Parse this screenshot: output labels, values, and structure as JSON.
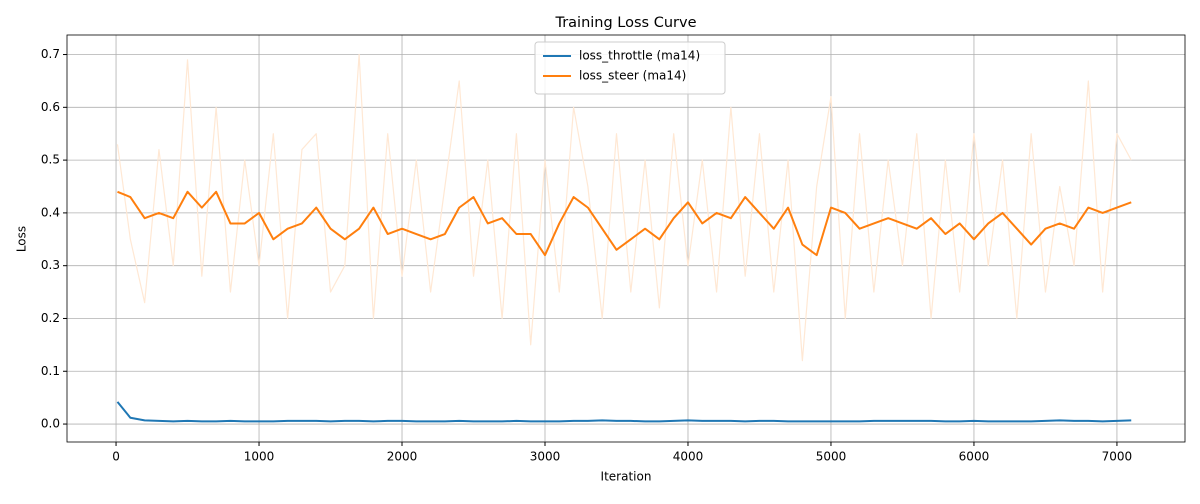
{
  "chart_data": {
    "type": "line",
    "title": "Training Loss Curve",
    "x_label": "Iteration",
    "y_label": "Loss",
    "x": [
      10,
      100,
      200,
      300,
      400,
      500,
      600,
      700,
      800,
      900,
      1000,
      1100,
      1200,
      1300,
      1400,
      1500,
      1600,
      1700,
      1800,
      1900,
      2000,
      2100,
      2200,
      2300,
      2400,
      2500,
      2600,
      2700,
      2800,
      2900,
      3000,
      3100,
      3200,
      3300,
      3400,
      3500,
      3600,
      3700,
      3800,
      3900,
      4000,
      4100,
      4200,
      4300,
      4400,
      4500,
      4600,
      4700,
      4800,
      4900,
      5000,
      5100,
      5200,
      5300,
      5400,
      5500,
      5600,
      5700,
      5800,
      5900,
      6000,
      6100,
      6200,
      6300,
      6400,
      6500,
      6600,
      6700,
      6800,
      6900,
      7000,
      7100
    ],
    "series": [
      {
        "color": "#ffe8d4",
        "values": [
          0.53,
          0.35,
          0.23,
          0.52,
          0.3,
          0.69,
          0.28,
          0.6,
          0.25,
          0.5,
          0.3,
          0.55,
          0.2,
          0.52,
          0.55,
          0.25,
          0.3,
          0.7,
          0.2,
          0.55,
          0.28,
          0.5,
          0.25,
          0.45,
          0.65,
          0.28,
          0.5,
          0.2,
          0.55,
          0.15,
          0.5,
          0.25,
          0.6,
          0.45,
          0.2,
          0.55,
          0.25,
          0.5,
          0.22,
          0.55,
          0.3,
          0.5,
          0.25,
          0.6,
          0.28,
          0.55,
          0.25,
          0.5,
          0.12,
          0.45,
          0.62,
          0.2,
          0.55,
          0.25,
          0.5,
          0.3,
          0.55,
          0.2,
          0.5,
          0.25,
          0.55,
          0.3,
          0.5,
          0.2,
          0.55,
          0.25,
          0.45,
          0.3,
          0.65,
          0.25,
          0.55,
          0.5
        ]
      },
      {
        "name": "loss_throttle (ma14)",
        "color": "#1f77b4",
        "values": [
          0.042,
          0.012,
          0.007,
          0.006,
          0.005,
          0.006,
          0.005,
          0.005,
          0.006,
          0.005,
          0.005,
          0.005,
          0.006,
          0.006,
          0.006,
          0.005,
          0.006,
          0.006,
          0.005,
          0.006,
          0.006,
          0.005,
          0.005,
          0.005,
          0.006,
          0.005,
          0.005,
          0.005,
          0.006,
          0.005,
          0.005,
          0.005,
          0.006,
          0.006,
          0.007,
          0.006,
          0.006,
          0.005,
          0.005,
          0.006,
          0.007,
          0.006,
          0.006,
          0.006,
          0.005,
          0.006,
          0.006,
          0.005,
          0.005,
          0.005,
          0.005,
          0.005,
          0.005,
          0.006,
          0.006,
          0.006,
          0.006,
          0.006,
          0.005,
          0.005,
          0.006,
          0.005,
          0.005,
          0.005,
          0.005,
          0.006,
          0.007,
          0.006,
          0.006,
          0.005,
          0.006,
          0.007
        ]
      },
      {
        "name": "loss_steer (ma14)",
        "color": "#ff7f0e",
        "values": [
          0.44,
          0.43,
          0.39,
          0.4,
          0.39,
          0.44,
          0.41,
          0.44,
          0.38,
          0.38,
          0.4,
          0.35,
          0.37,
          0.38,
          0.41,
          0.37,
          0.35,
          0.37,
          0.41,
          0.36,
          0.37,
          0.36,
          0.35,
          0.36,
          0.41,
          0.43,
          0.38,
          0.39,
          0.36,
          0.36,
          0.32,
          0.38,
          0.43,
          0.41,
          0.37,
          0.33,
          0.35,
          0.37,
          0.35,
          0.39,
          0.42,
          0.38,
          0.4,
          0.39,
          0.43,
          0.4,
          0.37,
          0.41,
          0.34,
          0.32,
          0.41,
          0.4,
          0.37,
          0.38,
          0.39,
          0.38,
          0.37,
          0.39,
          0.36,
          0.38,
          0.35,
          0.38,
          0.4,
          0.37,
          0.34,
          0.37,
          0.38,
          0.37,
          0.41,
          0.4,
          0.41,
          0.42
        ]
      }
    ],
    "xlim": [
      -343,
      7476
    ],
    "ylim": [
      -0.034,
      0.737
    ],
    "xticks": [
      0,
      1000,
      2000,
      3000,
      4000,
      5000,
      6000,
      7000
    ],
    "yticks": [
      {
        "value": 0,
        "label": "0.0"
      },
      0.1,
      0.2,
      0.3,
      0.4,
      0.5,
      0.6,
      0.7
    ],
    "grid": true,
    "legend": "upper center"
  }
}
